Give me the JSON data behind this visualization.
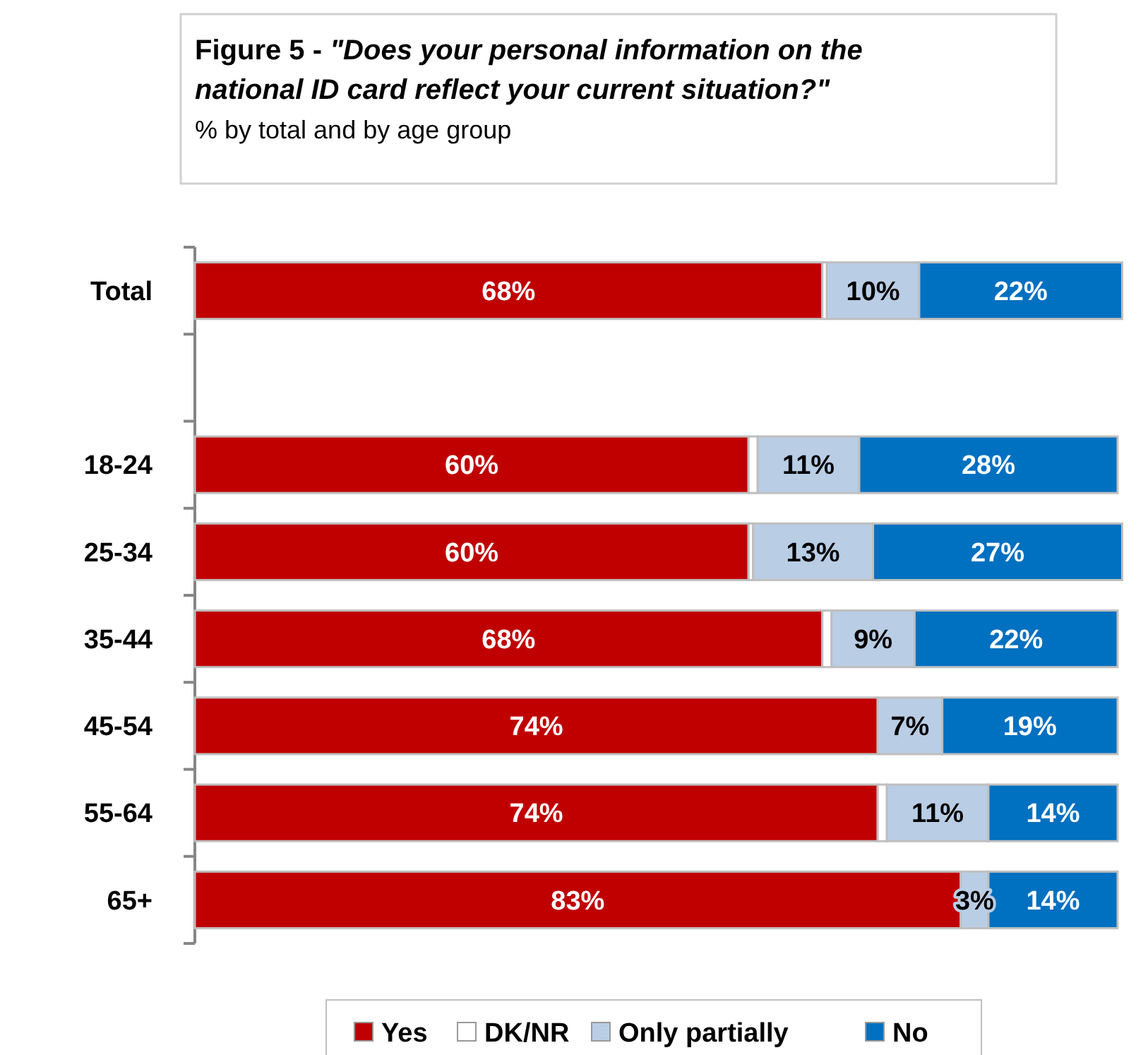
{
  "chart_data": {
    "type": "bar",
    "orientation": "horizontal",
    "stacked": true,
    "title": "Figure 5 - \"Does your personal information on the national ID card reflect your current situation?\"",
    "subtitle": "% by total and by age group",
    "categories": [
      "Total",
      null,
      "18-24",
      "25-34",
      "35-44",
      "45-54",
      "55-64",
      "65+"
    ],
    "series": [
      {
        "name": "Yes",
        "color": "#c00000",
        "values": [
          68,
          null,
          60,
          60,
          68,
          74,
          74,
          83
        ],
        "value_labels": [
          "68%",
          null,
          "60%",
          "60%",
          "68%",
          "74%",
          "74%",
          "83%"
        ]
      },
      {
        "name": "DK/NR",
        "color": "#ffffff",
        "values": [
          0.5,
          null,
          1,
          0.5,
          1,
          0,
          1,
          0
        ],
        "value_labels": [
          null,
          null,
          null,
          null,
          null,
          null,
          null,
          null
        ]
      },
      {
        "name": "Only partially",
        "color": "#b9cde5",
        "values": [
          10,
          null,
          11,
          13,
          9,
          7,
          11,
          3
        ],
        "value_labels": [
          "10%",
          null,
          "11%",
          "13%",
          "9%",
          "7%",
          "11%",
          "3%"
        ]
      },
      {
        "name": "No",
        "color": "#0070c0",
        "values": [
          22,
          null,
          28,
          27,
          22,
          19,
          14,
          14
        ],
        "value_labels": [
          "22%",
          null,
          "28%",
          "27%",
          "22%",
          "19%",
          "14%",
          "14%"
        ]
      }
    ],
    "xlim": [
      0,
      101
    ],
    "tick_labels": "y",
    "grid": false,
    "legend": "bottom"
  }
}
